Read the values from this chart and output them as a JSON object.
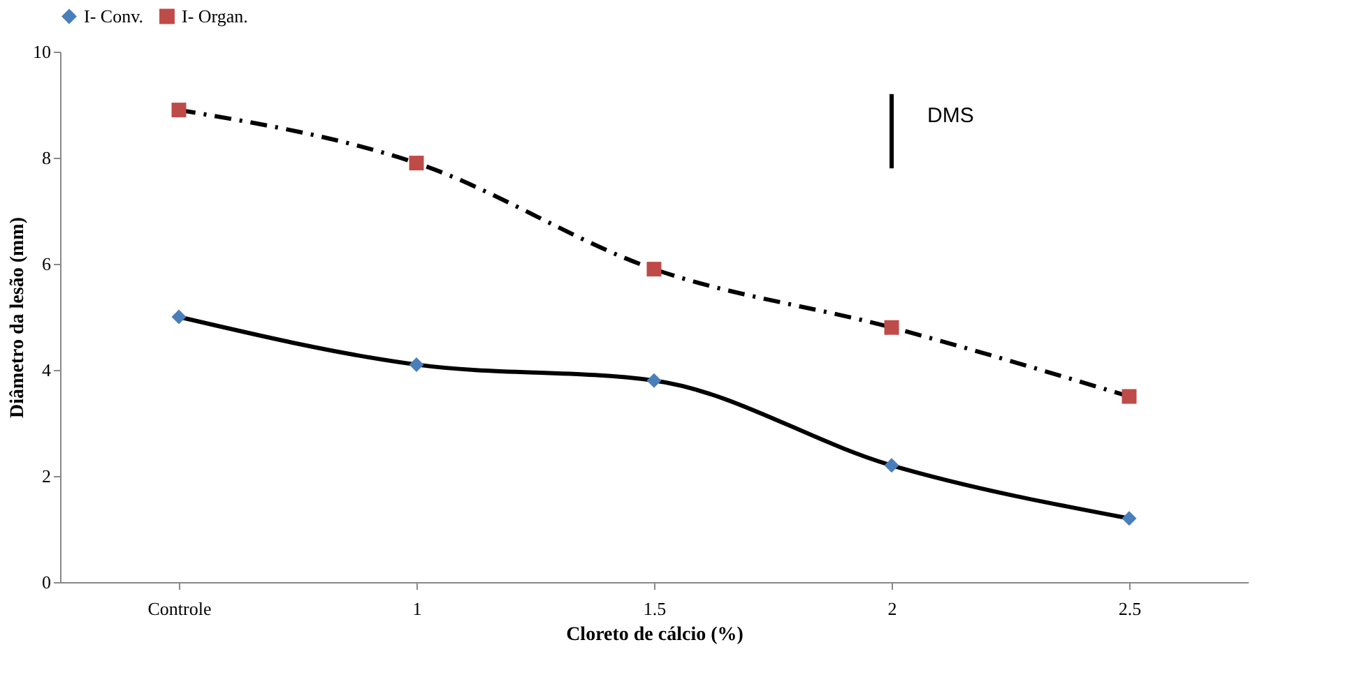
{
  "chart_data": {
    "type": "line",
    "xlabel": "Cloreto de cálcio (%)",
    "ylabel": "Diâmetro da lesão (mm)",
    "categories": [
      "Controle",
      "1",
      "1.5",
      "2",
      "2.5"
    ],
    "series": [
      {
        "name": "I- Conv.",
        "color": "#4a7ebb",
        "values": [
          5.0,
          4.1,
          3.8,
          2.2,
          1.2
        ],
        "marker": "diamond",
        "line_style": "solid"
      },
      {
        "name": "I- Organ.",
        "color": "#be4b48",
        "values": [
          8.9,
          7.9,
          5.9,
          4.8,
          3.5
        ],
        "marker": "square",
        "line_style": "dashed"
      },
      {
        "type": "line",
        "color": "#000000",
        "x": [
          "2",
          "2"
        ],
        "values": [
          7.8,
          9.2
        ],
        "line_style": "solid"
      }
    ],
    "ylim": [
      0,
      10
    ],
    "yticks": [
      0,
      2,
      4,
      6,
      8,
      10
    ],
    "grid": false,
    "legend": "top",
    "annotations": [
      "DMS"
    ]
  }
}
